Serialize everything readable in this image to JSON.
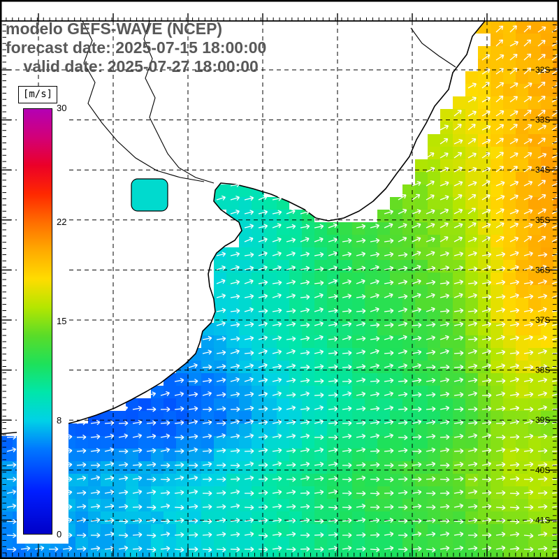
{
  "header": {
    "model_line": "modelo GEFS-WAVE (NCEP)",
    "forecast_line": "forecast date: 2025-07-15 18:00:00",
    "valid_line": "    valid date: 2025-07-27 18:00:00"
  },
  "colorbar": {
    "unit_label": "[m/s]",
    "min": 0,
    "max": 30,
    "tick_values": [
      30,
      22,
      15,
      8,
      0
    ],
    "tick_labels": [
      "30",
      "22",
      "15",
      "8",
      "0"
    ],
    "stops": [
      {
        "v": 0,
        "c": "#0000c8"
      },
      {
        "v": 3,
        "c": "#001eff"
      },
      {
        "v": 6,
        "c": "#0078ff"
      },
      {
        "v": 8,
        "c": "#00d2e6"
      },
      {
        "v": 10,
        "c": "#00e6aa"
      },
      {
        "v": 12,
        "c": "#1ee15a"
      },
      {
        "v": 14,
        "c": "#5adc28"
      },
      {
        "v": 16,
        "c": "#b4e600"
      },
      {
        "v": 18,
        "c": "#ffdc00"
      },
      {
        "v": 20,
        "c": "#ffaa00"
      },
      {
        "v": 22,
        "c": "#ff6e00"
      },
      {
        "v": 24,
        "c": "#ff2800"
      },
      {
        "v": 26,
        "c": "#eb0028"
      },
      {
        "v": 28,
        "c": "#d20078"
      },
      {
        "v": 30,
        "c": "#b400b4"
      }
    ]
  },
  "map": {
    "lat_labels": [
      "32S",
      "33S",
      "34S",
      "35S",
      "36S",
      "37S",
      "38S",
      "39S",
      "40S",
      "41S"
    ],
    "arrow_color": "#ffffff",
    "land_color": "#ffffff",
    "coast_color": "#000000",
    "grid_color": "#000000"
  },
  "field": {
    "quantity": "wind speed",
    "units": "m/s",
    "approx_range_shown": [
      4,
      20
    ],
    "low_speed_region": "southwest (blue, ~5 m/s)",
    "high_speed_region": "northeast and east edge (orange-yellow, ~18-20 m/s)"
  }
}
